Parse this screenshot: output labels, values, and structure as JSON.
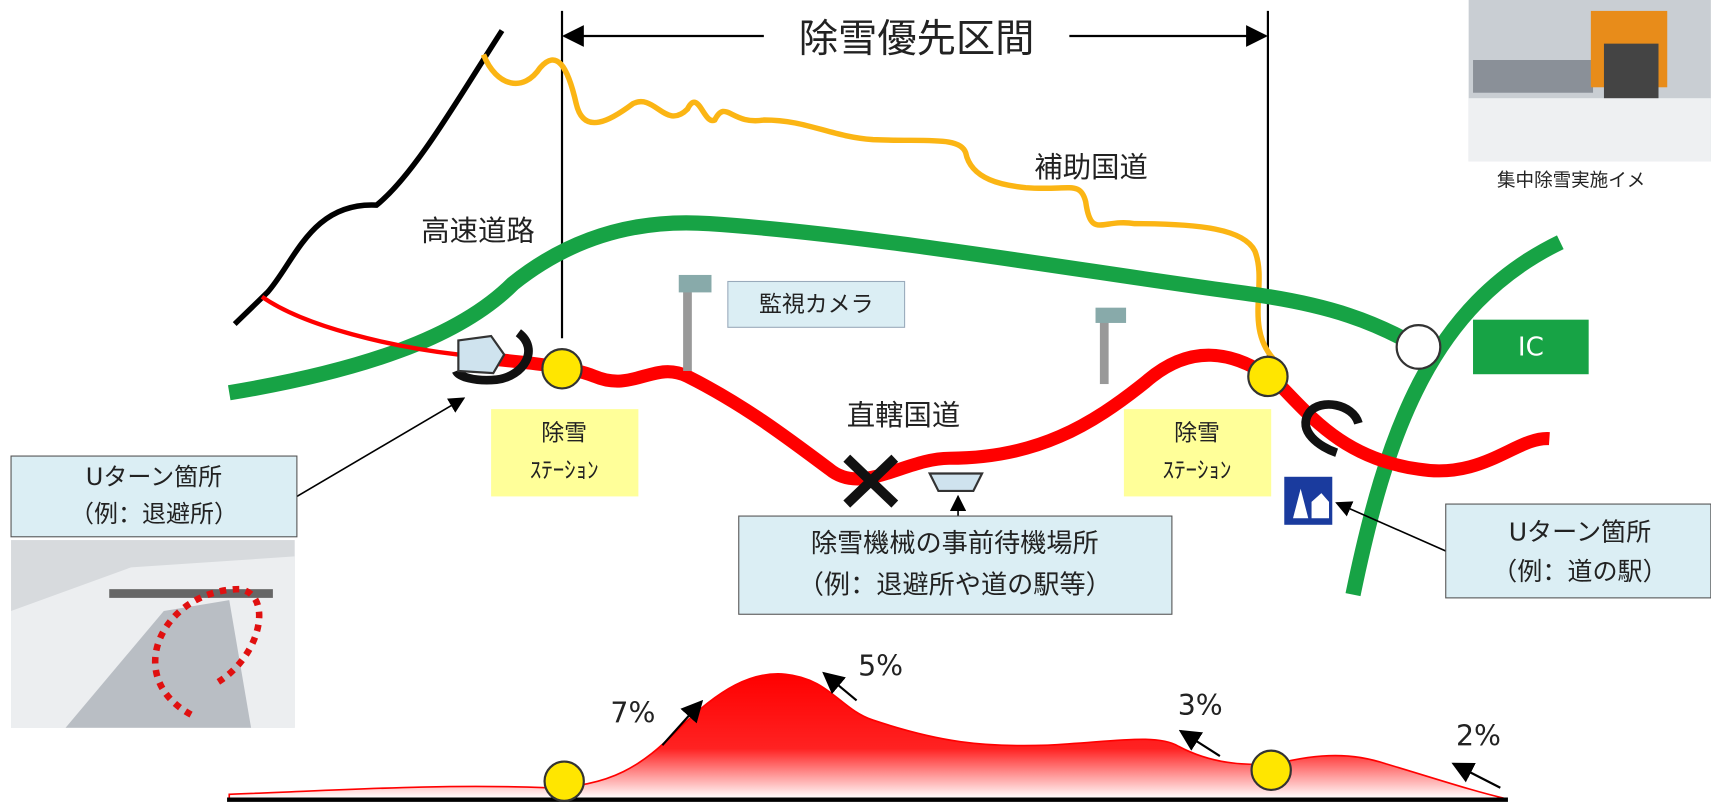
{
  "title": "除雪優先区間",
  "roads": {
    "auxiliary_national": "補助国道",
    "expressway": "高速道路",
    "direct_national": "直轄国道"
  },
  "camera": "監視カメラ",
  "ic": "IC",
  "stations": [
    {
      "lines": [
        "除雪",
        "ｽﾃｰｼｮﾝ"
      ]
    },
    {
      "lines": [
        "除雪",
        "ｽﾃｰｼｮﾝ"
      ]
    }
  ],
  "callouts": {
    "uturn_left": [
      "Uターン箇所",
      "（例：退避所）"
    ],
    "standby": [
      "除雪機械の事前待機場所",
      "（例：退避所や道の駅等）"
    ],
    "uturn_right": [
      "Uターン箇所",
      "（例：道の駅）"
    ]
  },
  "photo_caption": "集中除雪実施イメ",
  "gradients": [
    "7%",
    "5%",
    "3%",
    "2%"
  ]
}
